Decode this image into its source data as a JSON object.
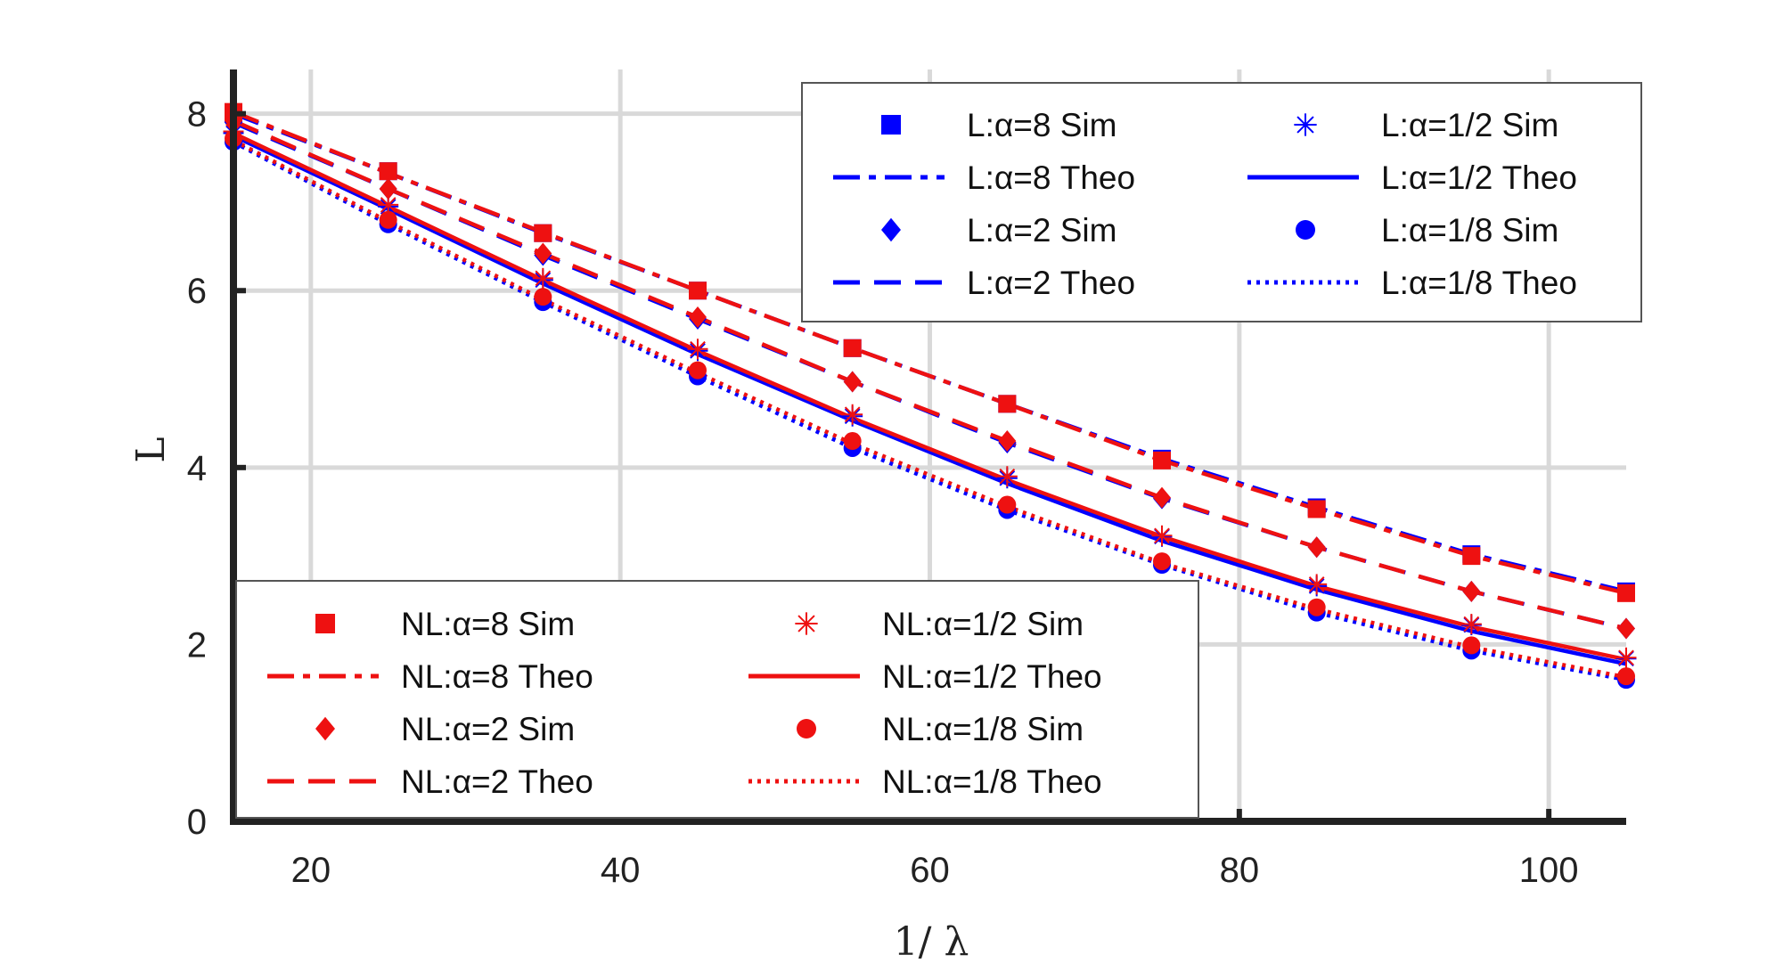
{
  "chart_data": {
    "type": "line",
    "xlabel": "1/ λ",
    "ylabel": "L",
    "xlim": [
      15,
      105
    ],
    "ylim": [
      0,
      8.5
    ],
    "xticks": [
      20,
      40,
      60,
      80,
      100
    ],
    "yticks": [
      0,
      2,
      4,
      6,
      8
    ],
    "grid": true,
    "x": [
      15,
      25,
      35,
      45,
      55,
      65,
      75,
      85,
      95,
      105
    ],
    "series": [
      {
        "name": "L:α=8 Sim",
        "kind": "sim",
        "marker": "square",
        "color": "#0000ff",
        "values": [
          8.0,
          7.35,
          6.65,
          6.0,
          5.35,
          4.72,
          4.1,
          3.55,
          3.02,
          2.6
        ]
      },
      {
        "name": "L:α=8 Theo",
        "kind": "theo",
        "dash": "dashdot",
        "color": "#0000ff",
        "values": [
          8.0,
          7.33,
          6.65,
          6.0,
          5.35,
          4.72,
          4.1,
          3.55,
          3.02,
          2.6
        ]
      },
      {
        "name": "L:α=2 Sim",
        "kind": "sim",
        "marker": "diamond",
        "color": "#0000ff",
        "values": [
          7.9,
          7.15,
          6.4,
          5.68,
          4.97,
          4.28,
          3.65,
          3.1,
          2.6,
          2.18
        ]
      },
      {
        "name": "L:α=2 Theo",
        "kind": "theo",
        "dash": "dashed",
        "color": "#0000ff",
        "values": [
          7.9,
          7.15,
          6.4,
          5.68,
          4.97,
          4.28,
          3.65,
          3.1,
          2.6,
          2.18
        ]
      },
      {
        "name": "L:α=1/2 Sim",
        "kind": "sim",
        "marker": "asterisk",
        "color": "#0000ff",
        "values": [
          7.78,
          6.95,
          6.12,
          5.32,
          4.58,
          3.88,
          3.22,
          2.66,
          2.22,
          1.84
        ]
      },
      {
        "name": "L:α=1/2 Theo",
        "kind": "theo",
        "dash": "solid",
        "color": "#0000ff",
        "values": [
          7.75,
          6.92,
          6.08,
          5.28,
          4.53,
          3.82,
          3.17,
          2.62,
          2.15,
          1.78
        ]
      },
      {
        "name": "L:α=1/8 Sim",
        "kind": "sim",
        "marker": "circle",
        "color": "#0000ff",
        "values": [
          7.68,
          6.75,
          5.87,
          5.03,
          4.22,
          3.52,
          2.9,
          2.36,
          1.93,
          1.6
        ]
      },
      {
        "name": "L:α=1/8 Theo",
        "kind": "theo",
        "dash": "dotted",
        "color": "#0000ff",
        "values": [
          7.68,
          6.75,
          5.87,
          5.03,
          4.22,
          3.52,
          2.9,
          2.36,
          1.93,
          1.6
        ]
      },
      {
        "name": "NL:α=8 Sim",
        "kind": "sim",
        "marker": "square",
        "color": "#ee1111",
        "values": [
          8.02,
          7.35,
          6.65,
          6.0,
          5.35,
          4.72,
          4.08,
          3.53,
          3.0,
          2.58
        ]
      },
      {
        "name": "NL:α=8 Theo",
        "kind": "theo",
        "dash": "dashdot",
        "color": "#ee1111",
        "values": [
          8.02,
          7.33,
          6.66,
          6.0,
          5.35,
          4.72,
          4.08,
          3.53,
          3.0,
          2.58
        ]
      },
      {
        "name": "NL:α=2 Sim",
        "kind": "sim",
        "marker": "diamond",
        "color": "#ee1111",
        "values": [
          7.92,
          7.15,
          6.42,
          5.7,
          4.97,
          4.3,
          3.66,
          3.1,
          2.6,
          2.18
        ]
      },
      {
        "name": "NL:α=2 Theo",
        "kind": "theo",
        "dash": "dashed",
        "color": "#ee1111",
        "values": [
          7.92,
          7.15,
          6.42,
          5.7,
          4.97,
          4.3,
          3.66,
          3.1,
          2.6,
          2.18
        ]
      },
      {
        "name": "NL:α=1/2 Sim",
        "kind": "sim",
        "marker": "asterisk",
        "color": "#ee1111",
        "values": [
          7.8,
          6.97,
          6.14,
          5.34,
          4.6,
          3.9,
          3.23,
          2.68,
          2.23,
          1.85
        ]
      },
      {
        "name": "NL:α=1/2 Theo",
        "kind": "theo",
        "dash": "solid",
        "color": "#ee1111",
        "values": [
          7.78,
          6.95,
          6.12,
          5.32,
          4.56,
          3.86,
          3.22,
          2.66,
          2.2,
          1.83
        ]
      },
      {
        "name": "NL:α=1/8 Sim",
        "kind": "sim",
        "marker": "circle",
        "color": "#ee1111",
        "values": [
          7.72,
          6.8,
          5.93,
          5.1,
          4.3,
          3.58,
          2.94,
          2.42,
          1.99,
          1.64
        ]
      },
      {
        "name": "NL:α=1/8 Theo",
        "kind": "theo",
        "dash": "dotted",
        "color": "#ee1111",
        "values": [
          7.7,
          6.78,
          5.9,
          5.07,
          4.27,
          3.56,
          2.92,
          2.4,
          1.97,
          1.63
        ]
      }
    ],
    "legends": [
      {
        "placement": "top-right",
        "columns": [
          [
            "L:α=8 Sim",
            "L:α=8 Theo",
            "L:α=2 Sim",
            "L:α=2 Theo"
          ],
          [
            "L:α=1/2 Sim",
            "L:α=1/2 Theo",
            "L:α=1/8 Sim",
            "L:α=1/8 Theo"
          ]
        ]
      },
      {
        "placement": "bottom-left",
        "columns": [
          [
            "NL:α=8 Sim",
            "NL:α=8 Theo",
            "NL:α=2 Sim",
            "NL:α=2 Theo"
          ],
          [
            "NL:α=1/2 Sim",
            "NL:α=1/2 Theo",
            "NL:α=1/8 Sim",
            "NL:α=1/8 Theo"
          ]
        ]
      }
    ]
  }
}
